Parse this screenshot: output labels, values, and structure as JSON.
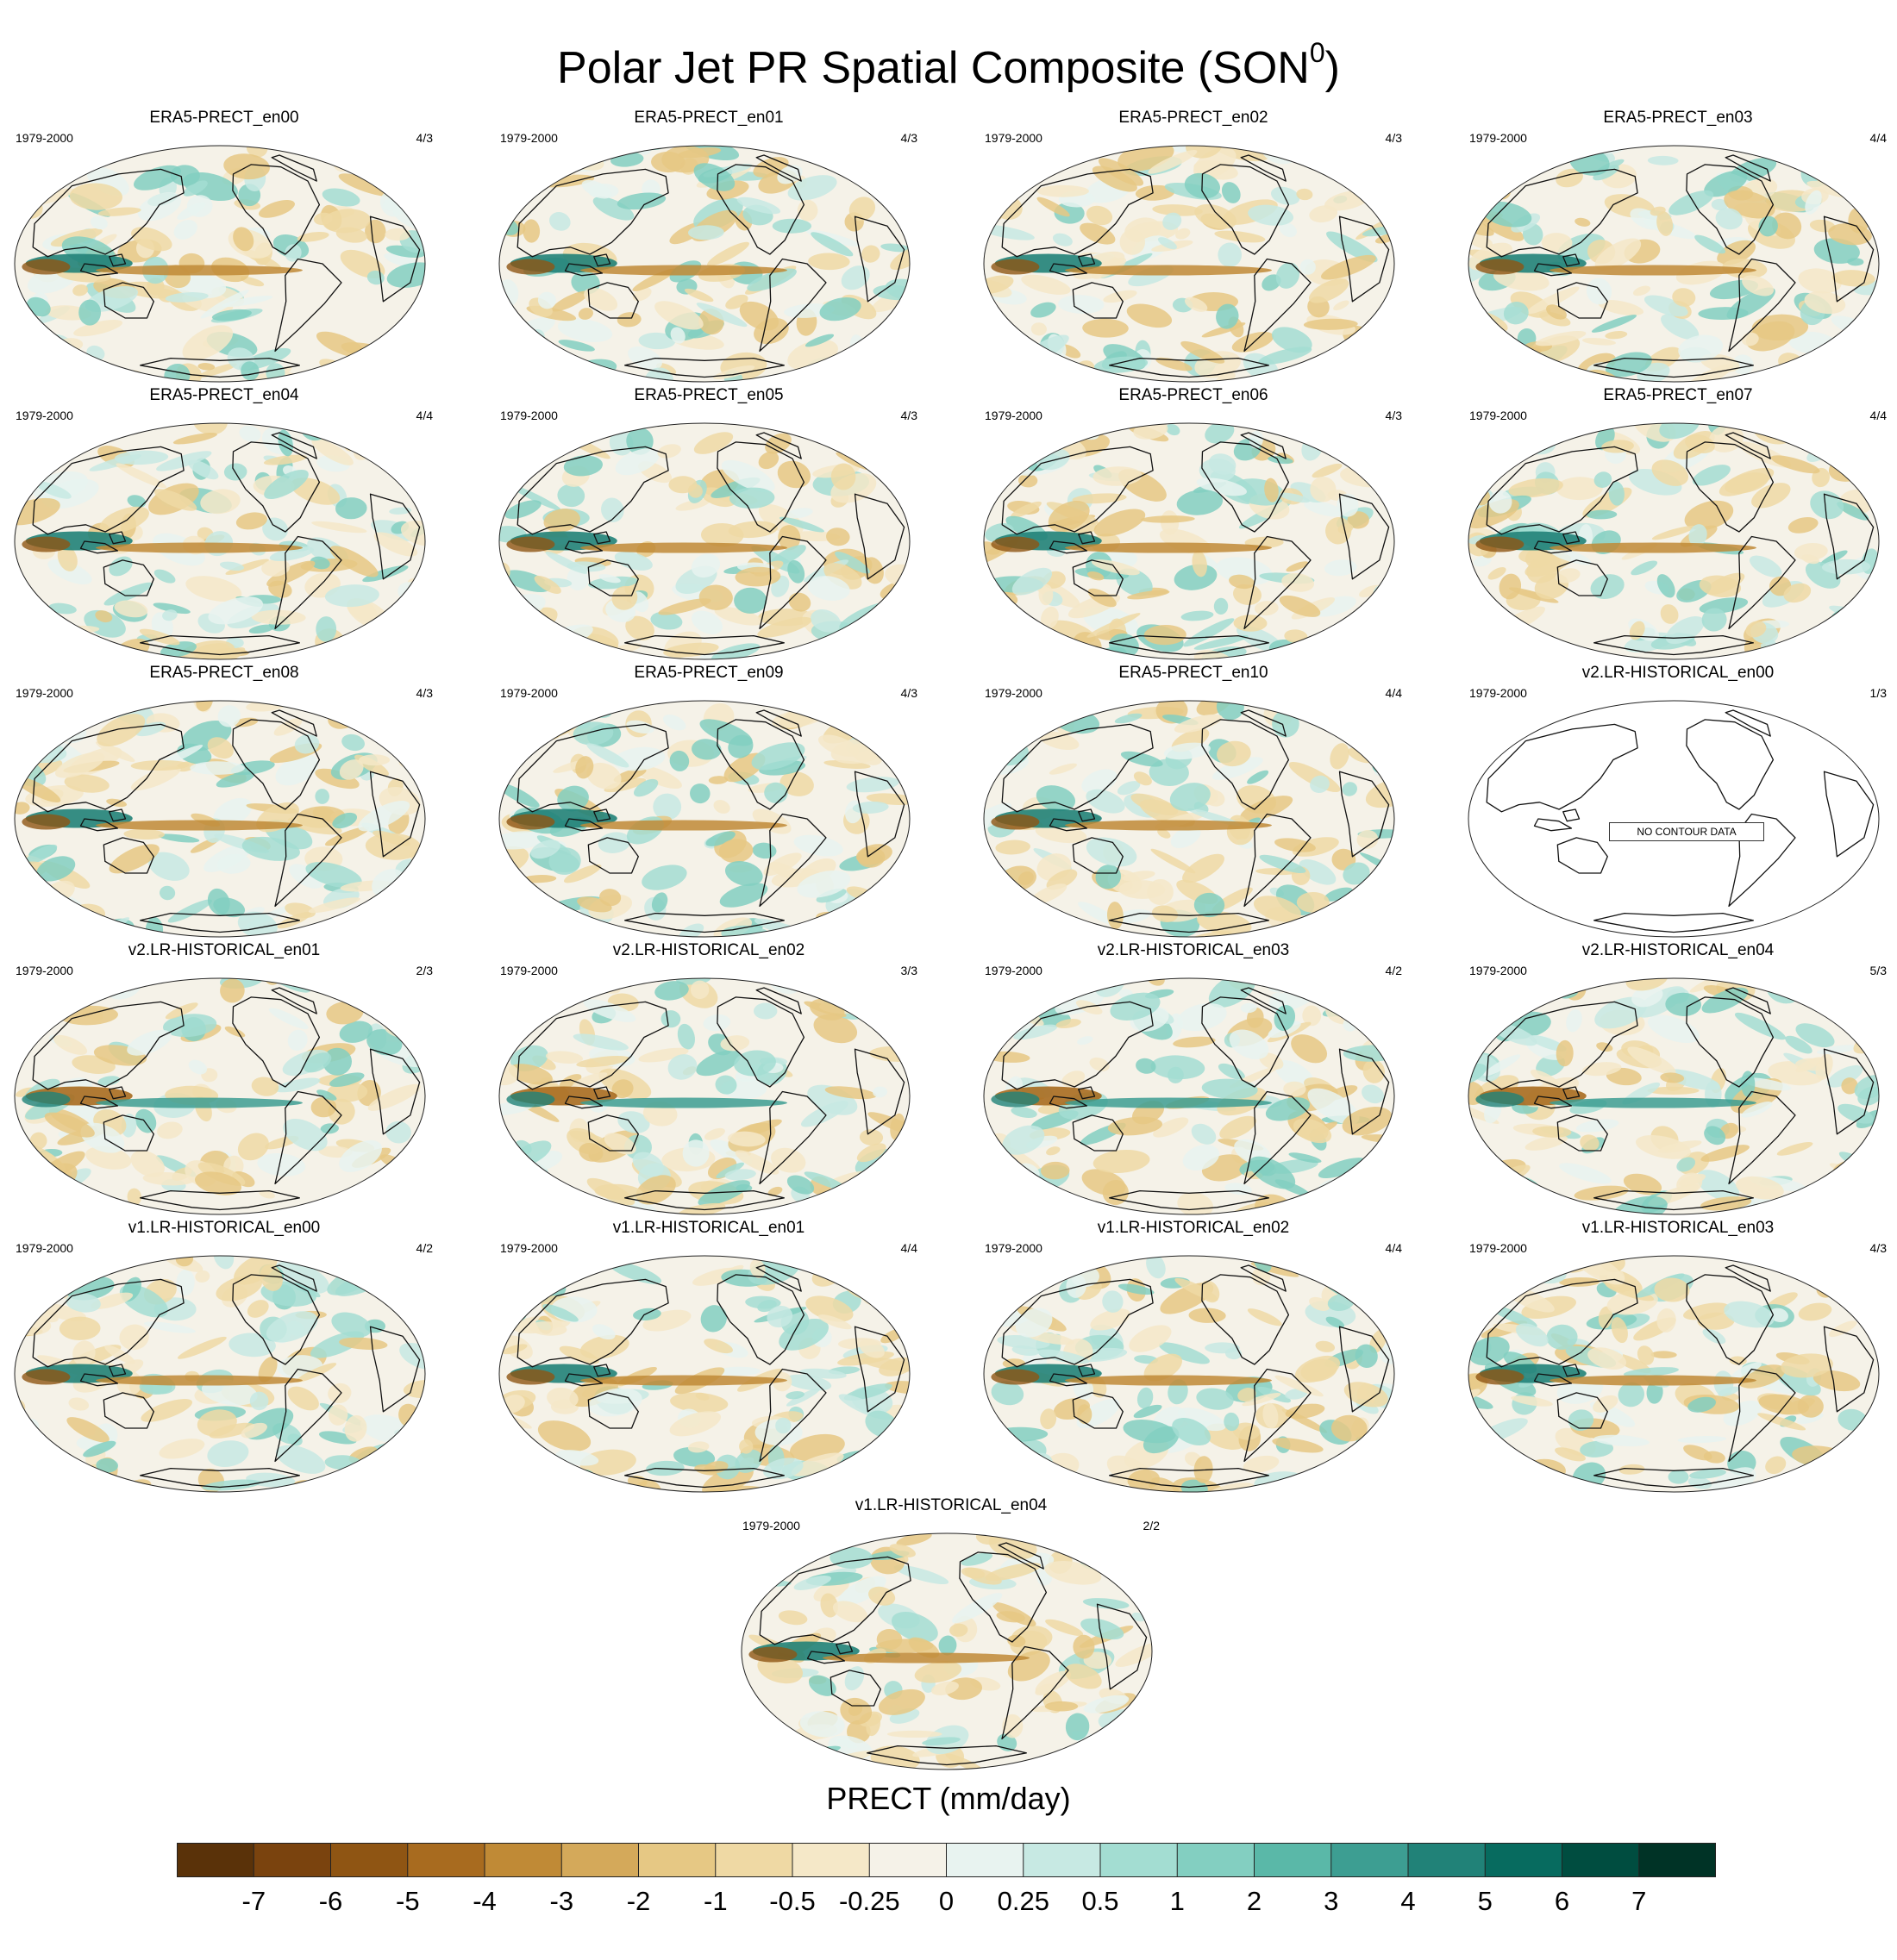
{
  "chart_data": {
    "type": "heatmap",
    "title": "Polar Jet PR Spatial Composite (SON",
    "title_superscript": "0",
    "title_close": ")",
    "projection": "global map, Pacific-centered",
    "colorbar": {
      "title": "PRECT (mm/day)",
      "levels": [
        "-7",
        "-6",
        "-5",
        "-4",
        "-3",
        "-2",
        "-1",
        "-0.5",
        "-0.25",
        "0",
        "0.25",
        "0.5",
        "1",
        "2",
        "3",
        "4",
        "5",
        "6",
        "7"
      ],
      "colors": [
        "#5a3209",
        "#7a430e",
        "#8f5513",
        "#a86b1f",
        "#c08a36",
        "#d4a95a",
        "#e6c884",
        "#efd9a4",
        "#f5e8c8",
        "#f5f2e8",
        "#e8f3f0",
        "#c7e9e3",
        "#a3ddd2",
        "#83cfc1",
        "#5ab8a8",
        "#3d9e92",
        "#218278",
        "#076b5f",
        "#004d40",
        "#003326"
      ],
      "placement": "bottom"
    },
    "panels": [
      {
        "title": "ERA5-PRECT_en00",
        "period": "1979-2000",
        "ratio": "4/3",
        "pattern": "era5"
      },
      {
        "title": "ERA5-PRECT_en01",
        "period": "1979-2000",
        "ratio": "4/3",
        "pattern": "era5"
      },
      {
        "title": "ERA5-PRECT_en02",
        "period": "1979-2000",
        "ratio": "4/3",
        "pattern": "era5"
      },
      {
        "title": "ERA5-PRECT_en03",
        "period": "1979-2000",
        "ratio": "4/4",
        "pattern": "era5"
      },
      {
        "title": "ERA5-PRECT_en04",
        "period": "1979-2000",
        "ratio": "4/4",
        "pattern": "era5"
      },
      {
        "title": "ERA5-PRECT_en05",
        "period": "1979-2000",
        "ratio": "4/3",
        "pattern": "era5"
      },
      {
        "title": "ERA5-PRECT_en06",
        "period": "1979-2000",
        "ratio": "4/3",
        "pattern": "era5"
      },
      {
        "title": "ERA5-PRECT_en07",
        "period": "1979-2000",
        "ratio": "4/4",
        "pattern": "era5"
      },
      {
        "title": "ERA5-PRECT_en08",
        "period": "1979-2000",
        "ratio": "4/3",
        "pattern": "era5"
      },
      {
        "title": "ERA5-PRECT_en09",
        "period": "1979-2000",
        "ratio": "4/3",
        "pattern": "era5"
      },
      {
        "title": "ERA5-PRECT_en10",
        "period": "1979-2000",
        "ratio": "4/4",
        "pattern": "era5"
      },
      {
        "title": "v2.LR-HISTORICAL_en00",
        "period": "1979-2000",
        "ratio": "1/3",
        "pattern": "none",
        "note": "NO CONTOUR DATA"
      },
      {
        "title": "v2.LR-HISTORICAL_en01",
        "period": "1979-2000",
        "ratio": "2/3",
        "pattern": "v2"
      },
      {
        "title": "v2.LR-HISTORICAL_en02",
        "period": "1979-2000",
        "ratio": "3/3",
        "pattern": "v2"
      },
      {
        "title": "v2.LR-HISTORICAL_en03",
        "period": "1979-2000",
        "ratio": "4/2",
        "pattern": "v2"
      },
      {
        "title": "v2.LR-HISTORICAL_en04",
        "period": "1979-2000",
        "ratio": "5/3",
        "pattern": "v2"
      },
      {
        "title": "v1.LR-HISTORICAL_en00",
        "period": "1979-2000",
        "ratio": "4/2",
        "pattern": "v1"
      },
      {
        "title": "v1.LR-HISTORICAL_en01",
        "period": "1979-2000",
        "ratio": "4/4",
        "pattern": "v1"
      },
      {
        "title": "v1.LR-HISTORICAL_en02",
        "period": "1979-2000",
        "ratio": "4/4",
        "pattern": "v1"
      },
      {
        "title": "v1.LR-HISTORICAL_en03",
        "period": "1979-2000",
        "ratio": "4/3",
        "pattern": "v1"
      },
      {
        "title": "v1.LR-HISTORICAL_en04",
        "period": "1979-2000",
        "ratio": "2/2",
        "pattern": "v1"
      }
    ]
  }
}
